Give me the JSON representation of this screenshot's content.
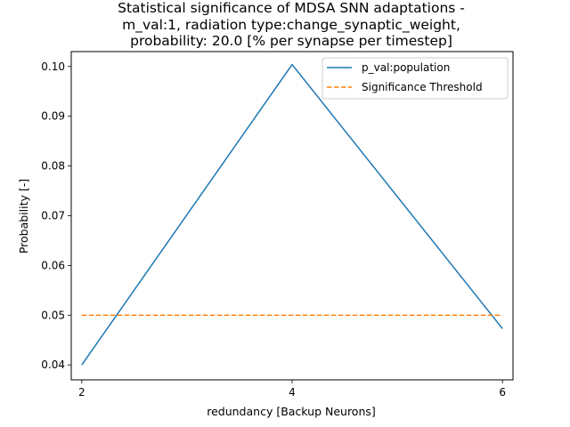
{
  "chart_data": {
    "type": "line",
    "title_lines": [
      "Statistical significance of MDSA SNN adaptations -",
      "m_val:1, radiation type:change_synaptic_weight,",
      "probability: 20.0 [% per synapse per timestep]"
    ],
    "xlabel": "redundancy [Backup Neurons]",
    "ylabel": "Probability [-]",
    "xlim": [
      1.9,
      6.1
    ],
    "ylim": [
      0.037,
      0.103
    ],
    "xticks": [
      2,
      4,
      6
    ],
    "xtick_labels": [
      "2",
      "4",
      "6"
    ],
    "yticks": [
      0.04,
      0.05,
      0.06,
      0.07,
      0.08,
      0.09,
      0.1
    ],
    "ytick_labels": [
      "0.04",
      "0.05",
      "0.06",
      "0.07",
      "0.08",
      "0.09",
      "0.10"
    ],
    "grid": false,
    "legend_position": "top-right",
    "series": [
      {
        "name": "p_val:population",
        "style": "solid",
        "color": "#1f77b4",
        "x": [
          2,
          4,
          6
        ],
        "y": [
          0.04,
          0.1004,
          0.0473
        ]
      },
      {
        "name": "Significance Threshold",
        "style": "dashed",
        "color": "#ff7f0e",
        "x": [
          2,
          4,
          6
        ],
        "y": [
          0.05,
          0.05,
          0.05
        ]
      }
    ]
  }
}
